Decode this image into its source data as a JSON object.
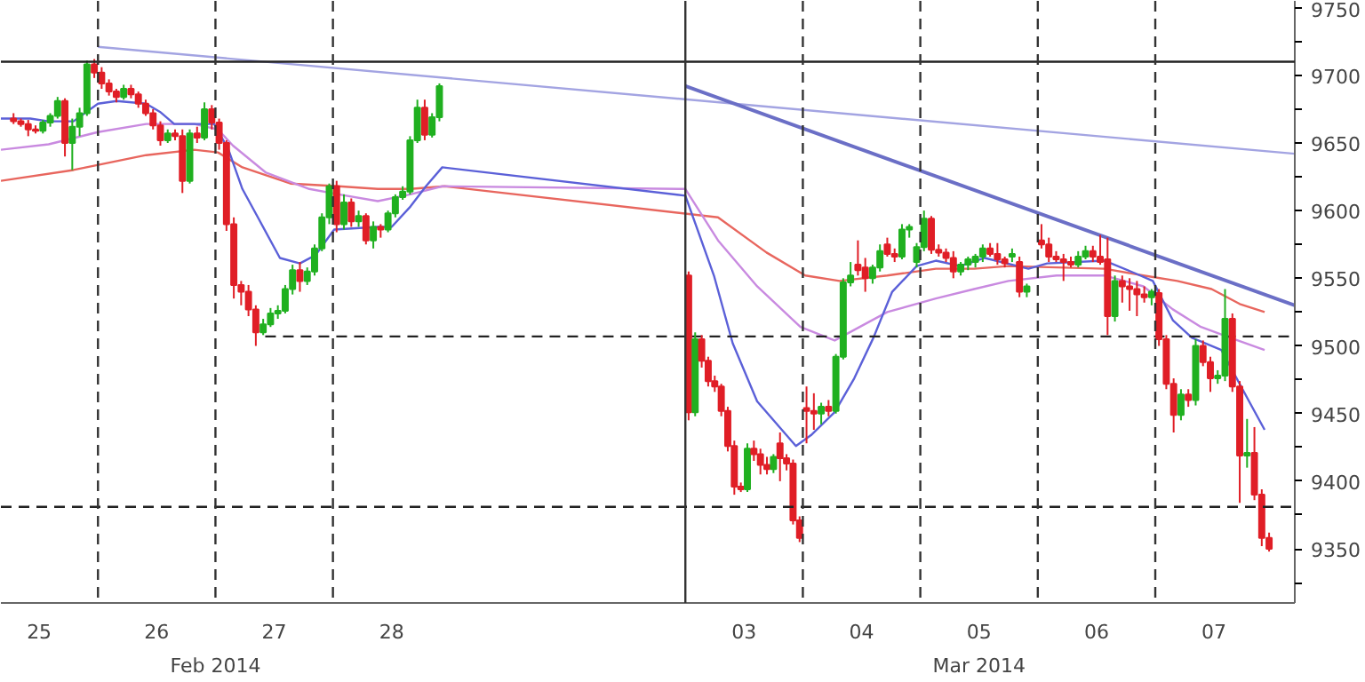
{
  "chart_data": {
    "type": "candlestick",
    "xlim": [
      "2014-02-25T04:10",
      "2014-03-08T04:30"
    ],
    "ylim": [
      9310,
      9755
    ],
    "xticks": [
      {
        "value": "2014-02-25T12:00",
        "label": "25"
      },
      {
        "value": "2014-02-26T12:00",
        "label": "26"
      },
      {
        "value": "2014-02-27T12:00",
        "label": "27"
      },
      {
        "value": "2014-02-28T12:00",
        "label": "28"
      },
      {
        "value": "2014-03-03T12:00",
        "label": "03"
      },
      {
        "value": "2014-03-04T12:00",
        "label": "04"
      },
      {
        "value": "2014-03-05T12:00",
        "label": "05"
      },
      {
        "value": "2014-03-06T12:00",
        "label": "06"
      },
      {
        "value": "2014-03-07T12:00",
        "label": "07"
      }
    ],
    "x2lim": [
      "2014-02-25T04:10",
      "2014-03-08T04:30"
    ],
    "x2ticks": [
      {
        "value": "2014-02-27T00:00",
        "label": "Feb 2014"
      },
      {
        "value": "2014-03-05T12:00",
        "label": "Mar 2014"
      }
    ],
    "yticks": [
      {
        "value": 9325,
        "label": null
      },
      9350,
      {
        "value": 9375,
        "label": null
      },
      9400,
      {
        "value": 9425,
        "label": null
      },
      9450,
      {
        "value": 9475,
        "label": null
      },
      9500,
      {
        "value": 9525,
        "label": null
      },
      9550,
      {
        "value": 9575,
        "label": null
      },
      9600,
      {
        "value": 9625,
        "label": null
      },
      9650,
      {
        "value": 9675,
        "label": null
      },
      9700,
      {
        "value": 9725,
        "label": null
      },
      9750
    ],
    "x": [
      "2014-02-25T06:45",
      "2014-02-25T08:15",
      "2014-02-25T09:45",
      "2014-02-25T11:15",
      "2014-02-25T12:45",
      "2014-02-25T14:15",
      "2014-02-25T15:45",
      "2014-02-25T17:15",
      "2014-02-25T18:45",
      "2014-02-25T20:15",
      "2014-02-25T21:45",
      "2014-02-25T23:15",
      "2014-02-26T00:45",
      "2014-02-26T02:15",
      "2014-02-26T03:45",
      "2014-02-26T05:15",
      "2014-02-26T06:45",
      "2014-02-26T08:15",
      "2014-02-26T09:45",
      "2014-02-26T11:15",
      "2014-02-26T12:45",
      "2014-02-26T14:15",
      "2014-02-26T15:45",
      "2014-02-26T17:15",
      "2014-02-26T18:45",
      "2014-02-26T20:15",
      "2014-02-26T21:45",
      "2014-02-26T23:15",
      "2014-02-27T00:45",
      "2014-02-27T02:15",
      "2014-02-27T03:45",
      "2014-02-27T05:15",
      "2014-02-27T06:45",
      "2014-02-27T08:15",
      "2014-02-27T09:45",
      "2014-02-27T11:15",
      "2014-02-27T12:45",
      "2014-02-27T14:15",
      "2014-02-27T15:45",
      "2014-02-27T17:15",
      "2014-02-27T18:45",
      "2014-02-27T20:15",
      "2014-02-27T21:45",
      "2014-02-27T23:15",
      "2014-02-28T00:45",
      "2014-02-28T02:15",
      "2014-02-28T03:45",
      "2014-02-28T05:15",
      "2014-02-28T06:45",
      "2014-02-28T08:15",
      "2014-02-28T09:45",
      "2014-02-28T11:15",
      "2014-02-28T12:45",
      "2014-02-28T14:15",
      "2014-02-28T15:45",
      "2014-02-28T17:15",
      "2014-02-28T18:45",
      "2014-02-28T20:15",
      "2014-02-28T21:45",
      "2014-03-03T00:40",
      "2014-03-03T02:00",
      "2014-03-03T03:20",
      "2014-03-03T04:40",
      "2014-03-03T06:00",
      "2014-03-03T07:20",
      "2014-03-03T08:40",
      "2014-03-03T10:00",
      "2014-03-03T11:20",
      "2014-03-03T12:40",
      "2014-03-03T14:00",
      "2014-03-03T15:20",
      "2014-03-03T16:40",
      "2014-03-03T18:00",
      "2014-03-03T19:20",
      "2014-03-03T20:40",
      "2014-03-03T22:00",
      "2014-03-03T23:20",
      "2014-03-04T00:45",
      "2014-03-04T02:15",
      "2014-03-04T03:45",
      "2014-03-04T05:15",
      "2014-03-04T06:45",
      "2014-03-04T08:15",
      "2014-03-04T09:45",
      "2014-03-04T11:15",
      "2014-03-04T12:45",
      "2014-03-04T14:15",
      "2014-03-04T15:45",
      "2014-03-04T17:15",
      "2014-03-04T18:45",
      "2014-03-04T20:15",
      "2014-03-04T21:45",
      "2014-03-04T23:15",
      "2014-03-05T00:45",
      "2014-03-05T02:15",
      "2014-03-05T03:45",
      "2014-03-05T05:15",
      "2014-03-05T06:45",
      "2014-03-05T08:15",
      "2014-03-05T09:45",
      "2014-03-05T11:15",
      "2014-03-05T12:45",
      "2014-03-05T14:15",
      "2014-03-05T15:45",
      "2014-03-05T17:15",
      "2014-03-05T18:45",
      "2014-03-05T20:15",
      "2014-03-05T21:45",
      "2014-03-06T00:45",
      "2014-03-06T02:15",
      "2014-03-06T03:45",
      "2014-03-06T05:15",
      "2014-03-06T06:45",
      "2014-03-06T08:15",
      "2014-03-06T09:45",
      "2014-03-06T11:15",
      "2014-03-06T12:45",
      "2014-03-06T14:15",
      "2014-03-06T15:45",
      "2014-03-06T17:15",
      "2014-03-06T18:45",
      "2014-03-06T20:15",
      "2014-03-06T21:45",
      "2014-03-06T23:15",
      "2014-03-07T00:45",
      "2014-03-07T02:15",
      "2014-03-07T03:45",
      "2014-03-07T05:15",
      "2014-03-07T06:45",
      "2014-03-07T08:15",
      "2014-03-07T09:45",
      "2014-03-07T11:15",
      "2014-03-07T12:45",
      "2014-03-07T14:15",
      "2014-03-07T15:45",
      "2014-03-07T17:15",
      "2014-03-07T18:45",
      "2014-03-07T20:15",
      "2014-03-07T21:45",
      "2014-03-07T23:15"
    ],
    "ohlc": [
      [
        9668,
        9672,
        9664,
        9666
      ],
      [
        9666,
        9668,
        9662,
        9664
      ],
      [
        9664,
        9667,
        9655,
        9660
      ],
      [
        9660,
        9663,
        9657,
        9659
      ],
      [
        9659,
        9667,
        9657,
        9665
      ],
      [
        9665,
        9672,
        9662,
        9670
      ],
      [
        9670,
        9684,
        9668,
        9681
      ],
      [
        9681,
        9683,
        9640,
        9650
      ],
      [
        9650,
        9668,
        9630,
        9662
      ],
      [
        9662,
        9676,
        9655,
        9672
      ],
      [
        9672,
        9711,
        9670,
        9708
      ],
      [
        9708,
        9712,
        9698,
        9702
      ],
      [
        9702,
        9706,
        9690,
        9694
      ],
      [
        9694,
        9697,
        9685,
        9688
      ],
      [
        9688,
        9690,
        9680,
        9684
      ],
      [
        9684,
        9693,
        9682,
        9690
      ],
      [
        9690,
        9693,
        9683,
        9686
      ],
      [
        9686,
        9688,
        9676,
        9679
      ],
      [
        9679,
        9682,
        9670,
        9672
      ],
      [
        9672,
        9675,
        9660,
        9663
      ],
      [
        9663,
        9666,
        9648,
        9652
      ],
      [
        9652,
        9660,
        9650,
        9657
      ],
      [
        9657,
        9660,
        9652,
        9655
      ],
      [
        9655,
        9660,
        9613,
        9622
      ],
      [
        9622,
        9660,
        9620,
        9657
      ],
      [
        9657,
        9662,
        9650,
        9654
      ],
      [
        9654,
        9680,
        9652,
        9675
      ],
      [
        9675,
        9678,
        9660,
        9665
      ],
      [
        9665,
        9668,
        9645,
        9650
      ],
      [
        9650,
        9652,
        9585,
        9590
      ],
      [
        9590,
        9595,
        9535,
        9545
      ],
      [
        9545,
        9548,
        9530,
        9540
      ],
      [
        9540,
        9545,
        9522,
        9527
      ],
      [
        9527,
        9530,
        9500,
        9510
      ],
      [
        9510,
        9520,
        9508,
        9516
      ],
      [
        9516,
        9528,
        9514,
        9524
      ],
      [
        9524,
        9530,
        9520,
        9526
      ],
      [
        9526,
        9545,
        9524,
        9542
      ],
      [
        9542,
        9560,
        9538,
        9556
      ],
      [
        9556,
        9562,
        9540,
        9548
      ],
      [
        9548,
        9558,
        9545,
        9555
      ],
      [
        9555,
        9575,
        9552,
        9572
      ],
      [
        9572,
        9598,
        9570,
        9595
      ],
      [
        9595,
        9620,
        9590,
        9618
      ],
      [
        9618,
        9622,
        9584,
        9590
      ],
      [
        9590,
        9612,
        9586,
        9606
      ],
      [
        9606,
        9609,
        9588,
        9592
      ],
      [
        9592,
        9600,
        9588,
        9596
      ],
      [
        9596,
        9598,
        9575,
        9578
      ],
      [
        9578,
        9592,
        9572,
        9588
      ],
      [
        9588,
        9590,
        9580,
        9586
      ],
      [
        9586,
        9600,
        9584,
        9598
      ],
      [
        9598,
        9612,
        9595,
        9610
      ],
      [
        9610,
        9618,
        9608,
        9614
      ],
      [
        9614,
        9655,
        9612,
        9652
      ],
      [
        9652,
        9682,
        9650,
        9676
      ],
      [
        9676,
        9682,
        9652,
        9656
      ],
      [
        9656,
        9672,
        9654,
        9669
      ],
      [
        9669,
        9694,
        9666,
        9692
      ],
      [
        9552,
        9555,
        9445,
        9451
      ],
      [
        9451,
        9510,
        9448,
        9505
      ],
      [
        9505,
        9508,
        9484,
        9489
      ],
      [
        9489,
        9492,
        9470,
        9474
      ],
      [
        9474,
        9478,
        9466,
        9470
      ],
      [
        9470,
        9472,
        9448,
        9452
      ],
      [
        9452,
        9455,
        9422,
        9426
      ],
      [
        9426,
        9430,
        9390,
        9396
      ],
      [
        9396,
        9399,
        9392,
        9394
      ],
      [
        9394,
        9428,
        9392,
        9424
      ],
      [
        9424,
        9430,
        9415,
        9420
      ],
      [
        9420,
        9424,
        9405,
        9412
      ],
      [
        9412,
        9418,
        9405,
        9409
      ],
      [
        9409,
        9420,
        9406,
        9418
      ],
      [
        9428,
        9436,
        9400,
        9417
      ],
      [
        9417,
        9420,
        9408,
        9413
      ],
      [
        9413,
        9416,
        9368,
        9371
      ],
      [
        9371,
        9374,
        9355,
        9358
      ],
      [
        9454,
        9470,
        9428,
        9452
      ],
      [
        9452,
        9465,
        9438,
        9450
      ],
      [
        9450,
        9458,
        9442,
        9455
      ],
      [
        9455,
        9460,
        9448,
        9452
      ],
      [
        9452,
        9494,
        9450,
        9492
      ],
      [
        9492,
        9550,
        9490,
        9547
      ],
      [
        9547,
        9562,
        9544,
        9552
      ],
      [
        9560,
        9578,
        9552,
        9556
      ],
      [
        9558,
        9565,
        9540,
        9550
      ],
      [
        9550,
        9560,
        9546,
        9558
      ],
      [
        9558,
        9575,
        9555,
        9570
      ],
      [
        9575,
        9580,
        9566,
        9568
      ],
      [
        9568,
        9572,
        9562,
        9566
      ],
      [
        9566,
        9590,
        9564,
        9586
      ],
      [
        9586,
        9590,
        9580,
        9588
      ],
      [
        9562,
        9576,
        9558,
        9573
      ],
      [
        9573,
        9600,
        9570,
        9594
      ],
      [
        9594,
        9596,
        9568,
        9571
      ],
      [
        9571,
        9575,
        9566,
        9569
      ],
      [
        9569,
        9572,
        9562,
        9565
      ],
      [
        9565,
        9570,
        9550,
        9555
      ],
      [
        9555,
        9562,
        9552,
        9560
      ],
      [
        9560,
        9566,
        9556,
        9564
      ],
      [
        9562,
        9568,
        9558,
        9566
      ],
      [
        9566,
        9575,
        9562,
        9572
      ],
      [
        9572,
        9576,
        9566,
        9568
      ],
      [
        9568,
        9576,
        9560,
        9564
      ],
      [
        9564,
        9566,
        9558,
        9561
      ],
      [
        9566,
        9572,
        9562,
        9568
      ],
      [
        9562,
        9566,
        9536,
        9540
      ],
      [
        9540,
        9546,
        9536,
        9544
      ],
      [
        9578,
        9590,
        9572,
        9575
      ],
      [
        9575,
        9580,
        9562,
        9566
      ],
      [
        9566,
        9570,
        9562,
        9564
      ],
      [
        9564,
        9568,
        9548,
        9562
      ],
      [
        9562,
        9566,
        9558,
        9560
      ],
      [
        9560,
        9570,
        9558,
        9566
      ],
      [
        9566,
        9574,
        9564,
        9570
      ],
      [
        9570,
        9574,
        9562,
        9566
      ],
      [
        9566,
        9582,
        9560,
        9562
      ],
      [
        9564,
        9580,
        9508,
        9522
      ],
      [
        9522,
        9552,
        9518,
        9548
      ],
      [
        9548,
        9552,
        9532,
        9544
      ],
      [
        9544,
        9550,
        9526,
        9542
      ],
      [
        9542,
        9548,
        9522,
        9538
      ],
      [
        9538,
        9544,
        9532,
        9536
      ],
      [
        9536,
        9542,
        9530,
        9540
      ],
      [
        9539,
        9542,
        9500,
        9505
      ],
      [
        9505,
        9508,
        9468,
        9472
      ],
      [
        9472,
        9476,
        9436,
        9449
      ],
      [
        9449,
        9468,
        9445,
        9464
      ],
      [
        9464,
        9468,
        9455,
        9460
      ],
      [
        9460,
        9505,
        9456,
        9500
      ],
      [
        9500,
        9504,
        9485,
        9488
      ],
      [
        9488,
        9492,
        9466,
        9476
      ],
      [
        9476,
        9482,
        9472,
        9478
      ],
      [
        9478,
        9542,
        9474,
        9520
      ],
      [
        9520,
        9524,
        9466,
        9470
      ],
      [
        9470,
        9474,
        9384,
        9419
      ],
      [
        9419,
        9446,
        9410,
        9421
      ],
      [
        9421,
        9440,
        9386,
        9390
      ],
      [
        9390,
        9394,
        9352,
        9358
      ],
      [
        9358,
        9362,
        9348,
        9350
      ]
    ],
    "colors": [
      "#e01e26",
      "#e01e26",
      "#e01e26",
      "#e01e26",
      "#20b020",
      "#20b020",
      "#20b020",
      "#e01e26",
      "#20b020",
      "#20b020",
      "#20b020",
      "#e01e26",
      "#e01e26",
      "#e01e26",
      "#e01e26",
      "#20b020",
      "#e01e26",
      "#e01e26",
      "#e01e26",
      "#e01e26",
      "#e01e26",
      "#20b020",
      "#e01e26",
      "#e01e26",
      "#20b020",
      "#e01e26",
      "#20b020",
      "#e01e26",
      "#e01e26",
      "#e01e26",
      "#e01e26",
      "#e01e26",
      "#e01e26",
      "#e01e26",
      "#20b020",
      "#20b020",
      "#20b020",
      "#20b020",
      "#20b020",
      "#e01e26",
      "#20b020",
      "#20b020",
      "#20b020",
      "#20b020",
      "#e01e26",
      "#20b020",
      "#e01e26",
      "#20b020",
      "#e01e26",
      "#20b020",
      "#e01e26",
      "#20b020",
      "#20b020",
      "#20b020",
      "#20b020",
      "#20b020",
      "#e01e26",
      "#20b020",
      "#20b020",
      "#e01e26",
      "#20b020",
      "#e01e26",
      "#e01e26",
      "#e01e26",
      "#e01e26",
      "#e01e26",
      "#e01e26",
      "#e01e26",
      "#20b020",
      "#e01e26",
      "#e01e26",
      "#e01e26",
      "#20b020",
      "#e01e26",
      "#e01e26",
      "#e01e26",
      "#e01e26",
      "#e01e26",
      "#e01e26",
      "#20b020",
      "#e01e26",
      "#20b020",
      "#20b020",
      "#20b020",
      "#e01e26",
      "#e01e26",
      "#20b020",
      "#20b020",
      "#e01e26",
      "#e01e26",
      "#20b020",
      "#20b020",
      "#20b020",
      "#20b020",
      "#e01e26",
      "#e01e26",
      "#e01e26",
      "#e01e26",
      "#20b020",
      "#20b020",
      "#20b020",
      "#20b020",
      "#e01e26",
      "#e01e26",
      "#e01e26",
      "#20b020",
      "#e01e26",
      "#20b020",
      "#e01e26",
      "#e01e26",
      "#e01e26",
      "#e01e26",
      "#e01e26",
      "#20b020",
      "#20b020",
      "#e01e26",
      "#e01e26",
      "#e01e26",
      "#20b020",
      "#e01e26",
      "#e01e26",
      "#e01e26",
      "#e01e26",
      "#20b020",
      "#e01e26",
      "#e01e26",
      "#e01e26",
      "#20b020",
      "#e01e26",
      "#20b020",
      "#e01e26",
      "#e01e26",
      "#20b020",
      "#20b020",
      "#e01e26",
      "#e01e26",
      "#20b020",
      "#e01e26",
      "#e01e26",
      "#e01e26"
    ],
    "series": [
      {
        "type": "line",
        "color": "#e8665e",
        "x": [
          "2014-02-25T04:10",
          "2014-02-25T19:00",
          "2014-02-26T09:50",
          "2014-02-26T19:40",
          "2014-02-27T00:30",
          "2014-02-27T05:30",
          "2014-02-27T15:20",
          "2014-02-28T01:10",
          "2014-02-28T09:10",
          "2014-02-28T15:50",
          "2014-02-28T22:50",
          "2014-03-03T06:40",
          "2014-03-03T16:35",
          "2014-03-04T00:30",
          "2014-03-04T07:30",
          "2014-03-04T17:15",
          "2014-03-05T03:10",
          "2014-03-05T11:00",
          "2014-03-05T18:00",
          "2014-03-06T13:40",
          "2014-03-06T21:35",
          "2014-03-07T04:30",
          "2014-03-07T11:30",
          "2014-03-07T17:15",
          "2014-03-07T22:20"
        ],
        "values": [
          9622,
          9630,
          9641,
          9645,
          9643,
          9632,
          9620,
          9618,
          9616,
          9616,
          9618,
          9595,
          9569,
          9552,
          9548,
          9552,
          9557,
          9557,
          9559,
          9557,
          9552,
          9548,
          9542,
          9531,
          9525
        ]
      },
      {
        "type": "line",
        "color": "#c98ae0",
        "x": [
          "2014-02-25T04:10",
          "2014-02-25T13:55",
          "2014-02-26T00:00",
          "2014-02-26T09:50",
          "2014-02-26T19:40",
          "2014-02-27T00:30",
          "2014-02-27T03:35",
          "2014-02-27T10:20",
          "2014-02-27T19:10",
          "2014-02-28T01:10",
          "2014-02-28T09:10",
          "2014-02-28T15:50",
          "2014-02-28T22:20",
          "2014-03-03T00:00",
          "2014-03-03T06:40",
          "2014-03-03T14:40",
          "2014-03-03T23:30",
          "2014-03-04T06:30",
          "2014-03-04T17:15",
          "2014-03-05T03:10",
          "2014-03-05T11:00",
          "2014-03-05T18:00",
          "2014-03-06T03:50",
          "2014-03-06T13:40",
          "2014-03-06T21:35",
          "2014-03-07T03:35",
          "2014-03-07T09:20",
          "2014-03-07T15:20",
          "2014-03-07T22:20"
        ],
        "values": [
          9645,
          9649,
          9658,
          9664,
          9664,
          9660,
          9648,
          9628,
          9616,
          9612,
          9607,
          9612,
          9618,
          9616,
          9578,
          9544,
          9514,
          9504,
          9525,
          9535,
          9542,
          9548,
          9552,
          9552,
          9544,
          9527,
          9514,
          9506,
          9497
        ]
      },
      {
        "type": "line",
        "color": "#5b60d8",
        "x": [
          "2014-02-25T04:10",
          "2014-02-25T10:10",
          "2014-02-25T13:55",
          "2014-02-25T19:00",
          "2014-02-26T00:00",
          "2014-02-26T03:50",
          "2014-02-26T09:50",
          "2014-02-26T12:40",
          "2014-02-26T15:35",
          "2014-02-26T23:45",
          "2014-02-27T02:40",
          "2014-02-27T05:30",
          "2014-02-27T08:40",
          "2014-02-27T13:10",
          "2014-02-27T17:15",
          "2014-02-27T20:25",
          "2014-02-28T00:15",
          "2014-02-28T09:10",
          "2014-02-28T12:00",
          "2014-02-28T15:50",
          "2014-02-28T19:00",
          "2014-02-28T22:20",
          "2014-03-03T00:00",
          "2014-03-03T05:50",
          "2014-03-03T09:40",
          "2014-03-03T14:40",
          "2014-03-03T22:35",
          "2014-03-04T01:40",
          "2014-03-04T06:30",
          "2014-03-04T10:30",
          "2014-03-04T14:25",
          "2014-03-04T18:15",
          "2014-03-04T23:15",
          "2014-03-05T03:10",
          "2014-03-05T08:10",
          "2014-03-05T13:10",
          "2014-03-05T22:05",
          "2014-03-06T01:55",
          "2014-03-06T13:40",
          "2014-03-06T19:40",
          "2014-03-06T23:30",
          "2014-03-07T03:35",
          "2014-03-07T07:30",
          "2014-03-07T13:30",
          "2014-03-07T19:10",
          "2014-03-07T22:20"
        ],
        "values": [
          9668,
          9668,
          9666,
          9666,
          9679,
          9681,
          9679,
          9673,
          9664,
          9664,
          9645,
          9616,
          9595,
          9565,
          9561,
          9567,
          9586,
          9588,
          9588,
          9603,
          9618,
          9632,
          9611,
          9552,
          9502,
          9459,
          9426,
          9434,
          9451,
          9476,
          9506,
          9540,
          9559,
          9563,
          9559,
          9565,
          9557,
          9561,
          9563,
          9554,
          9548,
          9519,
          9506,
          9497,
          9459,
          9438
        ]
      },
      {
        "type": "line",
        "color": "#a3a4e2",
        "x": [
          "2014-02-26T00:00",
          "2014-03-08T04:30"
        ],
        "values": [
          9721,
          9642
        ]
      },
      {
        "type": "line",
        "color": "#6b6fc6",
        "x": [
          "2014-03-03T00:00",
          "2014-03-08T04:30"
        ],
        "values": [
          9692,
          9530
        ]
      },
      {
        "type": "line",
        "color": "#222222",
        "line_style": "dashed",
        "x": [
          "2014-02-27T10:10",
          "2014-03-08T04:30"
        ],
        "values": [
          9507,
          9507
        ]
      }
    ],
    "ref_lines": [
      {
        "axis": "y",
        "value": 9710,
        "color": "#222222",
        "line_style": "solid"
      },
      {
        "axis": "y",
        "value": 9381,
        "color": "#222222",
        "line_style": "dashed"
      },
      {
        "axis": "x",
        "value": "2014-02-26",
        "color": "#333333",
        "line_style": "dashed"
      },
      {
        "axis": "x",
        "value": "2014-02-27",
        "color": "#333333",
        "line_style": "dashed"
      },
      {
        "axis": "x",
        "value": "2014-02-28",
        "color": "#333333",
        "line_style": "dashed"
      },
      {
        "axis": "x",
        "value": "2014-03-03",
        "color": "#333333",
        "line_style": "solid"
      },
      {
        "axis": "x",
        "value": "2014-03-04",
        "color": "#333333",
        "line_style": "dashed"
      },
      {
        "axis": "x",
        "value": "2014-03-05",
        "color": "#333333",
        "line_style": "dashed"
      },
      {
        "axis": "x",
        "value": "2014-03-06",
        "color": "#333333",
        "line_style": "dashed"
      },
      {
        "axis": "x",
        "value": "2014-03-07",
        "color": "#333333",
        "line_style": "dashed"
      }
    ]
  }
}
